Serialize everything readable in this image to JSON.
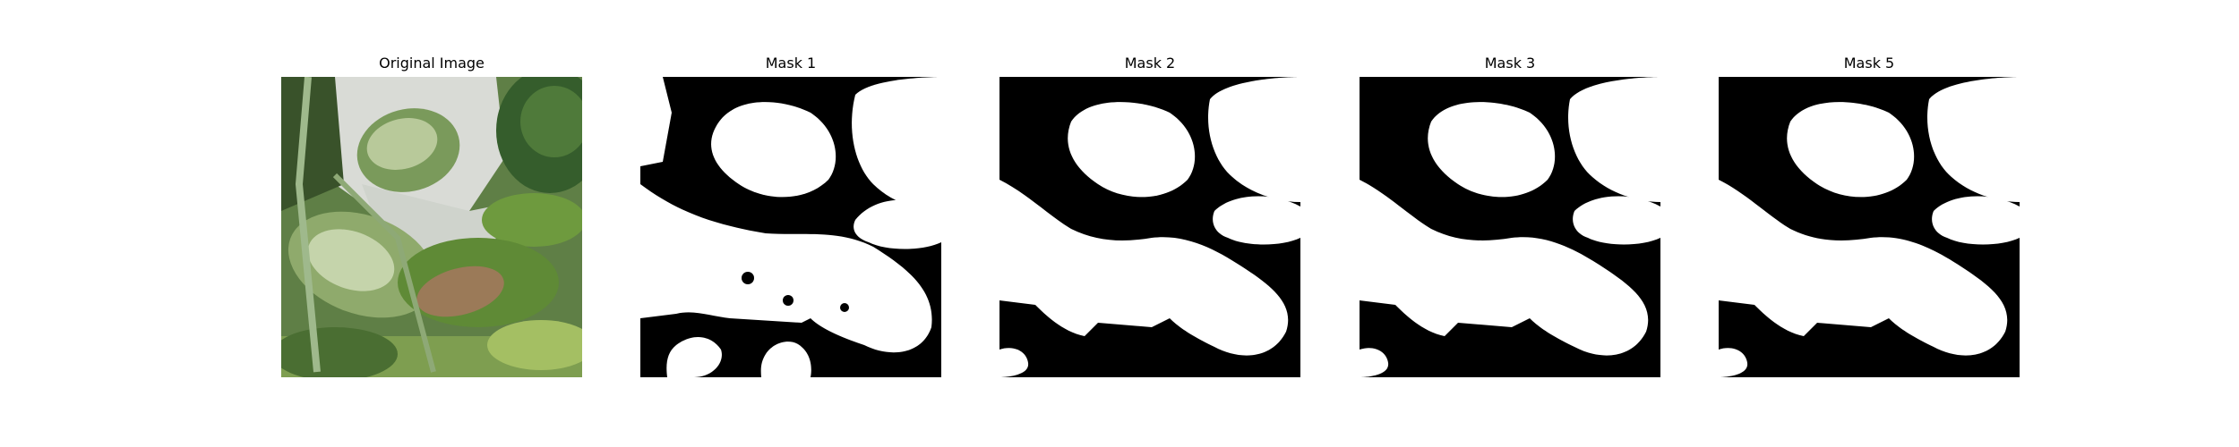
{
  "figure": {
    "panels": [
      {
        "title": "Original Image",
        "kind": "photo",
        "content": "leaf close-up"
      },
      {
        "title": "Mask 1",
        "kind": "binary-mask"
      },
      {
        "title": "Mask 2",
        "kind": "binary-mask"
      },
      {
        "title": "Mask 3",
        "kind": "binary-mask"
      },
      {
        "title": "Mask 5",
        "kind": "binary-mask"
      }
    ],
    "colors": {
      "background": "#ffffff",
      "mask_foreground": "#ffffff",
      "mask_background": "#000000",
      "leaf_dark": "#4f7a3a",
      "leaf_light": "#b8c99a",
      "sky_gray": "#d9dbd6",
      "brown_patch": "#9b7a58"
    }
  }
}
